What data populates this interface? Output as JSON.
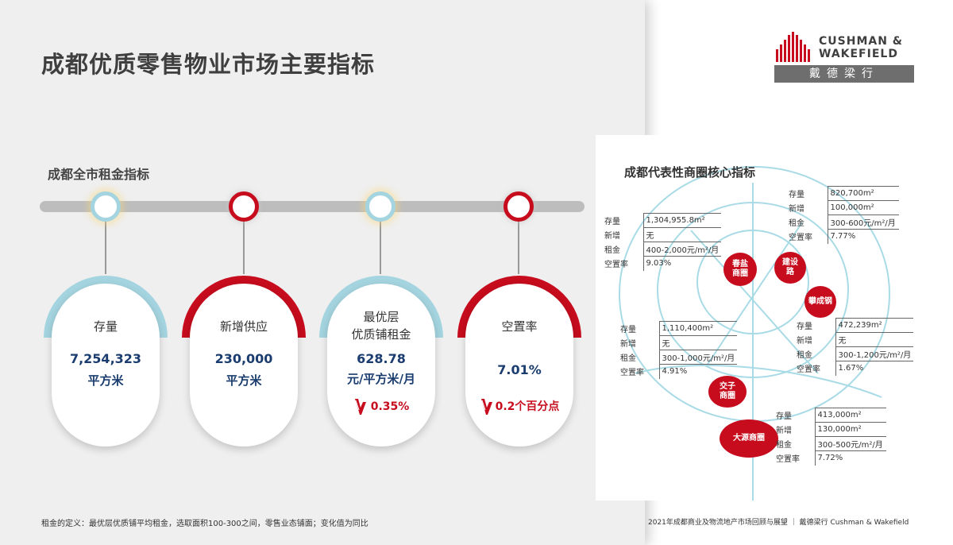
{
  "title": "成都优质零售物业市场主要指标",
  "citywide": {
    "heading": "成都全市租金指标",
    "metrics": [
      {
        "label_lines": [
          "存量"
        ],
        "value": "7,254,323",
        "unit": "平方米",
        "change": "",
        "color": "#a4d4df",
        "trend": "none"
      },
      {
        "label_lines": [
          "新增供应"
        ],
        "value": "230,000",
        "unit": "平方米",
        "change": "",
        "color": "#c60c1d",
        "trend": "none"
      },
      {
        "label_lines": [
          "最优层",
          "优质铺租金"
        ],
        "value": "628.78",
        "unit": "元/平方米/月",
        "change": "0.35%",
        "color": "#a4d4df",
        "trend": "down-icon"
      },
      {
        "label_lines": [
          "空置率"
        ],
        "value": "7.01%",
        "unit": "",
        "change": "0.2个百分点",
        "color": "#c60c1d",
        "trend": "down-icon"
      }
    ]
  },
  "footnote": "租金的定义：最优层优质铺平均租金，选取面积100-300之间，零售业态铺面；变化值为同比",
  "logo": {
    "line1": "CUSHMAN &",
    "line2": "WAKEFIELD",
    "chinese": "戴德梁行"
  },
  "districts": {
    "heading": "成都代表性商圈核心指标",
    "circles": [
      {
        "name_lines": [
          "春盐",
          "商圈"
        ]
      },
      {
        "name_lines": [
          "建设",
          "路"
        ]
      },
      {
        "name_lines": [
          "攀成钢"
        ]
      },
      {
        "name_lines": [
          "交子",
          "商圈"
        ]
      },
      {
        "name_lines": [
          "大源商圈"
        ]
      }
    ],
    "tables": [
      {
        "rows": [
          [
            "存量",
            "1,304,955.8m²"
          ],
          [
            "新增",
            "无"
          ],
          [
            "租金",
            "400-2,000元/m²/月"
          ],
          [
            "空置率",
            "9.03%"
          ]
        ]
      },
      {
        "rows": [
          [
            "存量",
            "820,700m²"
          ],
          [
            "新增",
            "100,000m²"
          ],
          [
            "租金",
            "300-600元/m²/月"
          ],
          [
            "空置率",
            "7.77%"
          ]
        ]
      },
      {
        "rows": [
          [
            "存量",
            "1,110,400m²"
          ],
          [
            "新增",
            "无"
          ],
          [
            "租金",
            "300-1,000元/m²/月"
          ],
          [
            "空置率",
            "4.91%"
          ]
        ]
      },
      {
        "rows": [
          [
            "存量",
            "472,239m²"
          ],
          [
            "新增",
            "无"
          ],
          [
            "租金",
            "300-1,200元/m²/月"
          ],
          [
            "空置率",
            "1.67%"
          ]
        ]
      },
      {
        "rows": [
          [
            "存量",
            "413,000m²"
          ],
          [
            "新增",
            "130,000m²"
          ],
          [
            "租金",
            "300-500元/m²/月"
          ],
          [
            "空置率",
            "7.72%"
          ]
        ]
      }
    ]
  },
  "footer_right": "2021年成都商业及物流地产市场回顾与展望 ｜ 戴德梁行 Cushman & Wakefield"
}
